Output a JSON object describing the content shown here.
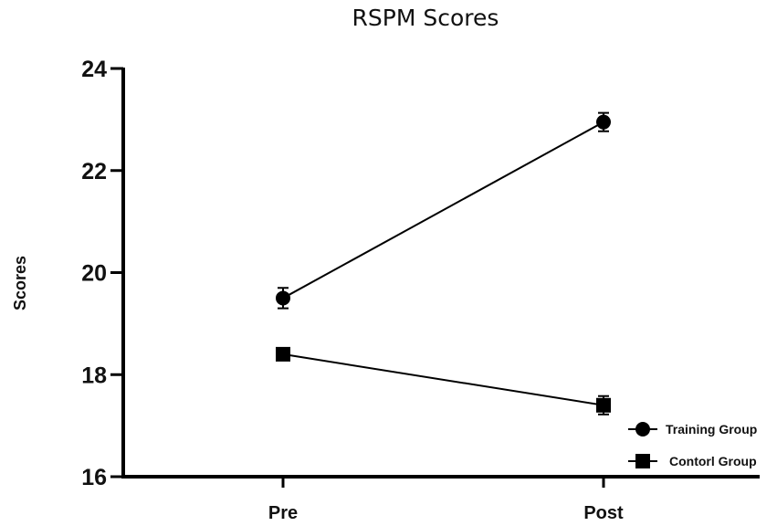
{
  "chart_data": {
    "type": "line",
    "title": "RSPM Scores",
    "xlabel": "",
    "ylabel": "Scores",
    "categories": [
      "Pre",
      "Post"
    ],
    "ylim": [
      16,
      24
    ],
    "yticks": [
      16,
      18,
      20,
      22,
      24
    ],
    "grid": false,
    "legend_position": "bottom-right",
    "series": [
      {
        "name": "Training Group",
        "marker": "circle",
        "color": "#000000",
        "values": [
          19.5,
          22.95
        ],
        "errors": [
          0.2,
          0.18
        ]
      },
      {
        "name": "Contorl Group",
        "marker": "square",
        "color": "#000000",
        "values": [
          18.4,
          17.4
        ],
        "errors": [
          0.1,
          0.18
        ]
      }
    ]
  }
}
